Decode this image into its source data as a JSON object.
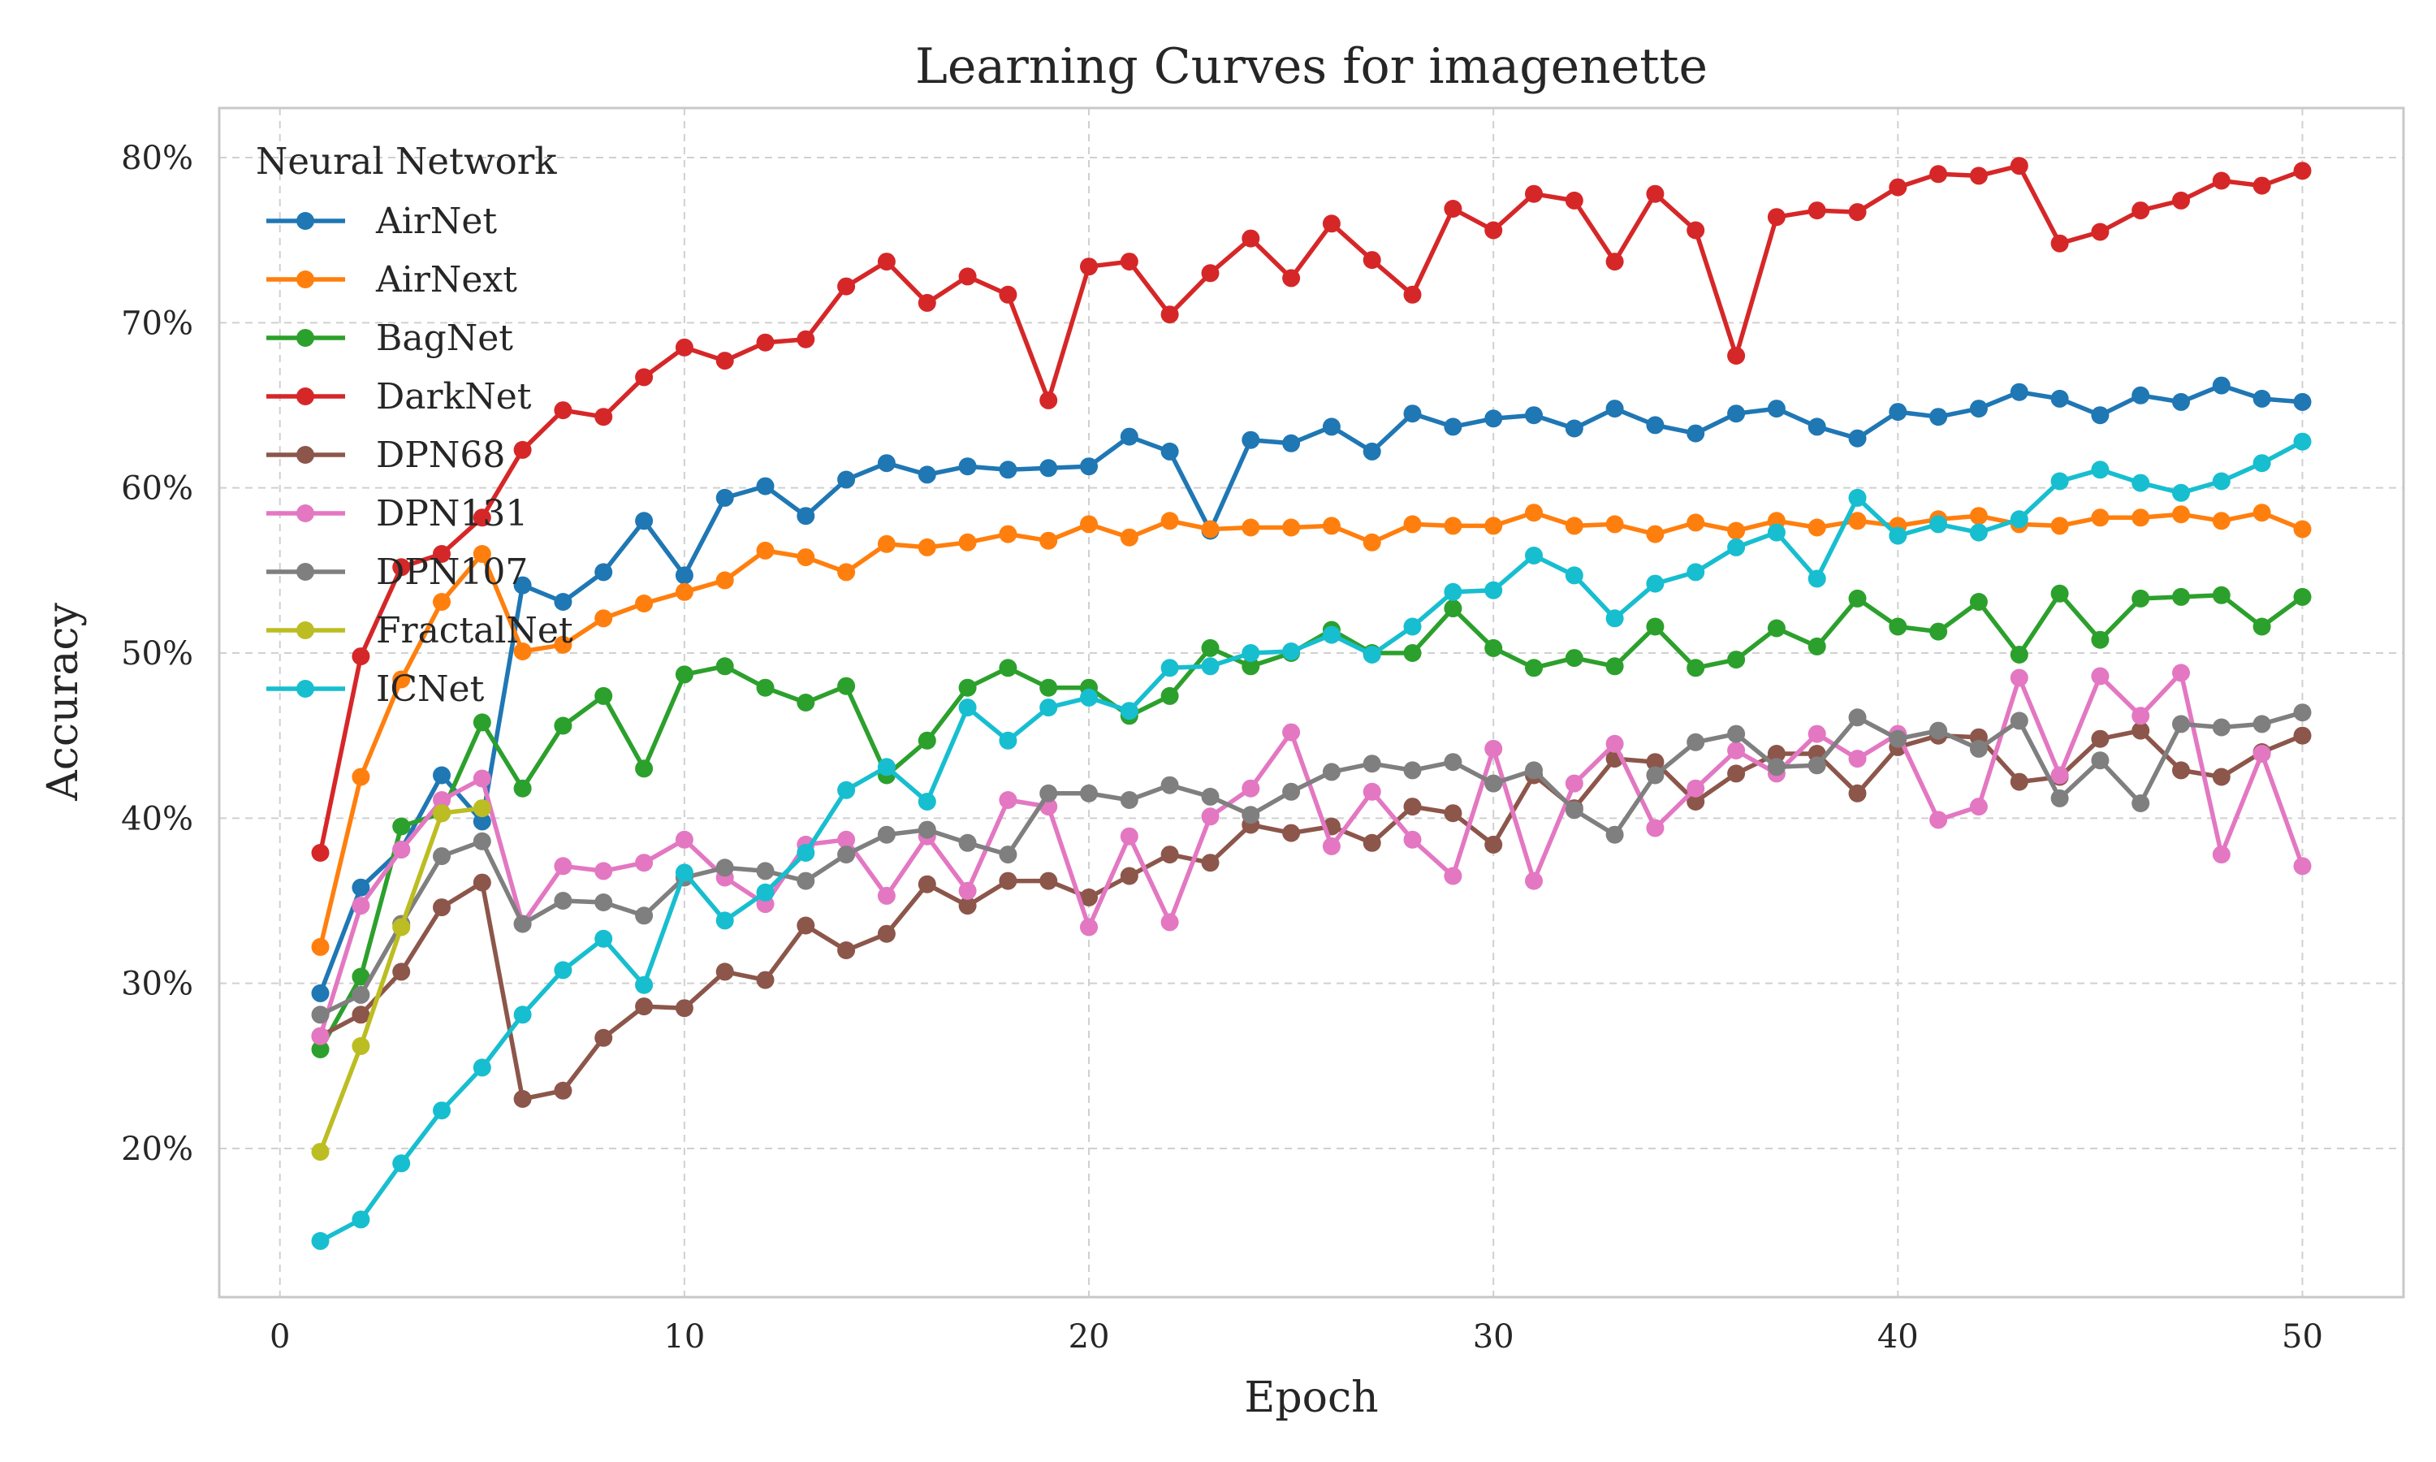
{
  "chart_data": {
    "type": "line",
    "title": "Learning Curves for imagenette",
    "xlabel": "Epoch",
    "ylabel": "Accuracy",
    "xlim": [
      -1.5,
      52.5
    ],
    "ylim": [
      0.11,
      0.83
    ],
    "x_ticks": [
      0,
      10,
      20,
      30,
      40,
      50
    ],
    "x_tick_labels": [
      "0",
      "10",
      "20",
      "30",
      "40",
      "50"
    ],
    "y_ticks": [
      0.2,
      0.3,
      0.4,
      0.5,
      0.6,
      0.7,
      0.8
    ],
    "y_tick_labels": [
      "20%",
      "30%",
      "40%",
      "50%",
      "60%",
      "70%",
      "80%"
    ],
    "grid": true,
    "legend": {
      "title": "Neural Network",
      "placement": "top-left"
    },
    "series": [
      {
        "name": "AirNet",
        "color": "#1f77b4",
        "x": [
          1,
          2,
          3,
          4,
          5,
          6,
          7,
          8,
          9,
          10,
          11,
          12,
          13,
          14,
          15,
          16,
          17,
          18,
          19,
          20,
          21,
          22,
          23,
          24,
          25,
          26,
          27,
          28,
          29,
          30,
          31,
          32,
          33,
          34,
          35,
          36,
          37,
          38,
          39,
          40,
          41,
          42,
          43,
          44,
          45,
          46,
          47,
          48,
          49,
          50
        ],
        "values": [
          0.294,
          0.358,
          0.381,
          0.426,
          0.398,
          0.541,
          0.531,
          0.549,
          0.58,
          0.547,
          0.594,
          0.601,
          0.583,
          0.605,
          0.615,
          0.608,
          0.613,
          0.611,
          0.612,
          0.613,
          0.631,
          0.622,
          0.574,
          0.629,
          0.627,
          0.637,
          0.622,
          0.645,
          0.637,
          0.642,
          0.644,
          0.636,
          0.648,
          0.638,
          0.633,
          0.645,
          0.648,
          0.637,
          0.63,
          0.646,
          0.643,
          0.648,
          0.658,
          0.654,
          0.644,
          0.656,
          0.652,
          0.662,
          0.654,
          0.652
        ]
      },
      {
        "name": "AirNext",
        "color": "#ff7f0e",
        "x": [
          1,
          2,
          3,
          4,
          5,
          6,
          7,
          8,
          9,
          10,
          11,
          12,
          13,
          14,
          15,
          16,
          17,
          18,
          19,
          20,
          21,
          22,
          23,
          24,
          25,
          26,
          27,
          28,
          29,
          30,
          31,
          32,
          33,
          34,
          35,
          36,
          37,
          38,
          39,
          40,
          41,
          42,
          43,
          44,
          45,
          46,
          47,
          48,
          49,
          50
        ],
        "values": [
          0.322,
          0.425,
          0.484,
          0.531,
          0.56,
          0.501,
          0.505,
          0.521,
          0.53,
          0.537,
          0.544,
          0.562,
          0.558,
          0.549,
          0.566,
          0.564,
          0.567,
          0.572,
          0.568,
          0.578,
          0.57,
          0.58,
          0.575,
          0.576,
          0.576,
          0.577,
          0.567,
          0.578,
          0.577,
          0.577,
          0.585,
          0.577,
          0.578,
          0.572,
          0.579,
          0.574,
          0.58,
          0.576,
          0.58,
          0.577,
          0.581,
          0.583,
          0.578,
          0.577,
          0.582,
          0.582,
          0.584,
          0.58,
          0.585,
          0.575
        ]
      },
      {
        "name": "BagNet",
        "color": "#2ca02c",
        "x": [
          1,
          2,
          3,
          4,
          5,
          6,
          7,
          8,
          9,
          10,
          11,
          12,
          13,
          14,
          15,
          16,
          17,
          18,
          19,
          20,
          21,
          22,
          23,
          24,
          25,
          26,
          27,
          28,
          29,
          30,
          31,
          32,
          33,
          34,
          35,
          36,
          37,
          38,
          39,
          40,
          41,
          42,
          43,
          44,
          45,
          46,
          47,
          48,
          49,
          50
        ],
        "values": [
          0.26,
          0.304,
          0.395,
          0.403,
          0.458,
          0.418,
          0.456,
          0.474,
          0.43,
          0.487,
          0.492,
          0.479,
          0.47,
          0.48,
          0.426,
          0.447,
          0.479,
          0.491,
          0.479,
          0.479,
          0.462,
          0.474,
          0.503,
          0.492,
          0.5,
          0.514,
          0.5,
          0.5,
          0.527,
          0.503,
          0.491,
          0.497,
          0.492,
          0.516,
          0.491,
          0.496,
          0.515,
          0.504,
          0.533,
          0.516,
          0.513,
          0.531,
          0.499,
          0.536,
          0.508,
          0.533,
          0.534,
          0.535,
          0.516,
          0.534
        ]
      },
      {
        "name": "DarkNet",
        "color": "#d62728",
        "x": [
          1,
          2,
          3,
          4,
          5,
          6,
          7,
          8,
          9,
          10,
          11,
          12,
          13,
          14,
          15,
          16,
          17,
          18,
          19,
          20,
          21,
          22,
          23,
          24,
          25,
          26,
          27,
          28,
          29,
          30,
          31,
          32,
          33,
          34,
          35,
          36,
          37,
          38,
          39,
          40,
          41,
          42,
          43,
          44,
          45,
          46,
          47,
          48,
          49,
          50
        ],
        "values": [
          0.379,
          0.498,
          0.552,
          0.56,
          0.582,
          0.623,
          0.647,
          0.643,
          0.667,
          0.685,
          0.677,
          0.688,
          0.69,
          0.722,
          0.737,
          0.712,
          0.728,
          0.717,
          0.653,
          0.734,
          0.737,
          0.705,
          0.73,
          0.751,
          0.727,
          0.76,
          0.738,
          0.717,
          0.769,
          0.756,
          0.778,
          0.774,
          0.737,
          0.778,
          0.756,
          0.68,
          0.764,
          0.768,
          0.767,
          0.782,
          0.79,
          0.789,
          0.795,
          0.748,
          0.755,
          0.768,
          0.774,
          0.786,
          0.783,
          0.792
        ]
      },
      {
        "name": "DPN68",
        "color": "#8c564b",
        "x": [
          1,
          2,
          3,
          4,
          5,
          6,
          7,
          8,
          9,
          10,
          11,
          12,
          13,
          14,
          15,
          16,
          17,
          18,
          19,
          20,
          21,
          22,
          23,
          24,
          25,
          26,
          27,
          28,
          29,
          30,
          31,
          32,
          33,
          34,
          35,
          36,
          37,
          38,
          39,
          40,
          41,
          42,
          43,
          44,
          45,
          46,
          47,
          48,
          49,
          50
        ],
        "values": [
          0.268,
          0.281,
          0.307,
          0.346,
          0.361,
          0.23,
          0.235,
          0.267,
          0.286,
          0.285,
          0.307,
          0.302,
          0.335,
          0.32,
          0.33,
          0.36,
          0.347,
          0.362,
          0.362,
          0.352,
          0.365,
          0.378,
          0.373,
          0.396,
          0.391,
          0.395,
          0.385,
          0.407,
          0.403,
          0.384,
          0.426,
          0.406,
          0.436,
          0.434,
          0.41,
          0.427,
          0.439,
          0.439,
          0.415,
          0.443,
          0.45,
          0.449,
          0.422,
          0.425,
          0.448,
          0.453,
          0.429,
          0.425,
          0.44,
          0.45
        ]
      },
      {
        "name": "DPN131",
        "color": "#e377c2",
        "x": [
          1,
          2,
          3,
          4,
          5,
          6,
          7,
          8,
          9,
          10,
          11,
          12,
          13,
          14,
          15,
          16,
          17,
          18,
          19,
          20,
          21,
          22,
          23,
          24,
          25,
          26,
          27,
          28,
          29,
          30,
          31,
          32,
          33,
          34,
          35,
          36,
          37,
          38,
          39,
          40,
          41,
          42,
          43,
          44,
          45,
          46,
          47,
          48,
          49,
          50
        ],
        "values": [
          0.268,
          0.347,
          0.381,
          0.411,
          0.424,
          0.336,
          0.371,
          0.368,
          0.373,
          0.387,
          0.364,
          0.348,
          0.384,
          0.387,
          0.353,
          0.389,
          0.356,
          0.411,
          0.407,
          0.334,
          0.389,
          0.337,
          0.401,
          0.418,
          0.452,
          0.383,
          0.416,
          0.387,
          0.365,
          0.442,
          0.362,
          0.421,
          0.445,
          0.394,
          0.418,
          0.441,
          0.427,
          0.451,
          0.436,
          0.451,
          0.399,
          0.407,
          0.485,
          0.426,
          0.486,
          0.462,
          0.488,
          0.378,
          0.439,
          0.371
        ]
      },
      {
        "name": "DPN107",
        "color": "#7f7f7f",
        "x": [
          1,
          2,
          3,
          4,
          5,
          6,
          7,
          8,
          9,
          10,
          11,
          12,
          13,
          14,
          15,
          16,
          17,
          18,
          19,
          20,
          21,
          22,
          23,
          24,
          25,
          26,
          27,
          28,
          29,
          30,
          31,
          32,
          33,
          34,
          35,
          36,
          37,
          38,
          39,
          40,
          41,
          42,
          43,
          44,
          45,
          46,
          47,
          48,
          49,
          50
        ],
        "values": [
          0.281,
          0.293,
          0.336,
          0.377,
          0.386,
          0.336,
          0.35,
          0.349,
          0.341,
          0.364,
          0.37,
          0.368,
          0.362,
          0.378,
          0.39,
          0.393,
          0.385,
          0.378,
          0.415,
          0.415,
          0.411,
          0.42,
          0.413,
          0.402,
          0.416,
          0.428,
          0.433,
          0.429,
          0.434,
          0.421,
          0.429,
          0.405,
          0.39,
          0.426,
          0.446,
          0.451,
          0.431,
          0.432,
          0.461,
          0.448,
          0.453,
          0.442,
          0.459,
          0.412,
          0.435,
          0.409,
          0.457,
          0.455,
          0.457,
          0.464
        ]
      },
      {
        "name": "FractalNet",
        "color": "#bcbd22",
        "x": [
          1,
          2,
          3,
          4,
          5
        ],
        "values": [
          0.198,
          0.262,
          0.334,
          0.403,
          0.406
        ]
      },
      {
        "name": "ICNet",
        "color": "#17becf",
        "x": [
          1,
          2,
          3,
          4,
          5,
          6,
          7,
          8,
          9,
          10,
          11,
          12,
          13,
          14,
          15,
          16,
          17,
          18,
          19,
          20,
          21,
          22,
          23,
          24,
          25,
          26,
          27,
          28,
          29,
          30,
          31,
          32,
          33,
          34,
          35,
          36,
          37,
          38,
          39,
          40,
          41,
          42,
          43,
          44,
          45,
          46,
          47,
          48,
          49,
          50
        ],
        "values": [
          0.144,
          0.157,
          0.191,
          0.223,
          0.249,
          0.281,
          0.308,
          0.327,
          0.299,
          0.367,
          0.338,
          0.355,
          0.379,
          0.417,
          0.431,
          0.41,
          0.467,
          0.447,
          0.467,
          0.473,
          0.465,
          0.491,
          0.492,
          0.5,
          0.501,
          0.511,
          0.499,
          0.516,
          0.537,
          0.538,
          0.559,
          0.547,
          0.521,
          0.542,
          0.549,
          0.564,
          0.573,
          0.545,
          0.594,
          0.571,
          0.578,
          0.573,
          0.581,
          0.604,
          0.611,
          0.603,
          0.597,
          0.604,
          0.615,
          0.628
        ]
      }
    ]
  }
}
